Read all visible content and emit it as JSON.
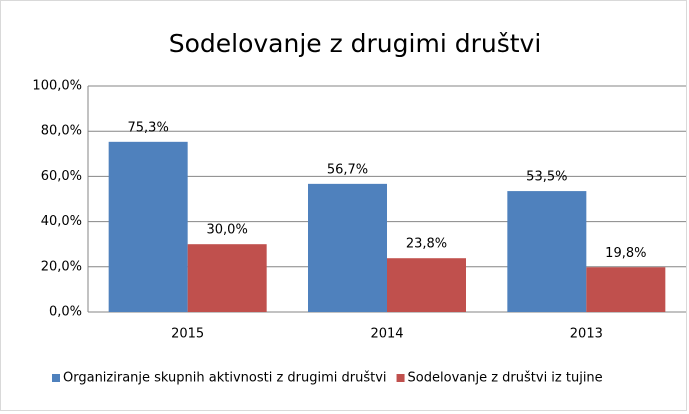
{
  "chart_data": {
    "type": "bar",
    "title": "Sodelovanje z drugimi društvi",
    "categories": [
      "2015",
      "2014",
      "2013"
    ],
    "series": [
      {
        "name": "Organiziranje skupnih aktivnosti z drugimi društvi",
        "color": "#4f81bd",
        "values": [
          75.3,
          56.7,
          53.5
        ],
        "value_labels": [
          "75,3%",
          "56,7%",
          "53,5%"
        ]
      },
      {
        "name": "Sodelovanje z društvi iz tujine",
        "color": "#c0504d",
        "values": [
          30.0,
          23.8,
          19.8
        ],
        "value_labels": [
          "30,0%",
          "23,8%",
          "19,8%"
        ]
      }
    ],
    "ylim": [
      0,
      100
    ],
    "yticks": [
      {
        "value": 0,
        "label": "0,0%"
      },
      {
        "value": 20,
        "label": "20,0%"
      },
      {
        "value": 40,
        "label": "40,0%"
      },
      {
        "value": 60,
        "label": "60,0%"
      },
      {
        "value": 80,
        "label": "80,0%"
      },
      {
        "value": 100,
        "label": "100,0%"
      }
    ],
    "grid": true,
    "legend": "bottom"
  }
}
